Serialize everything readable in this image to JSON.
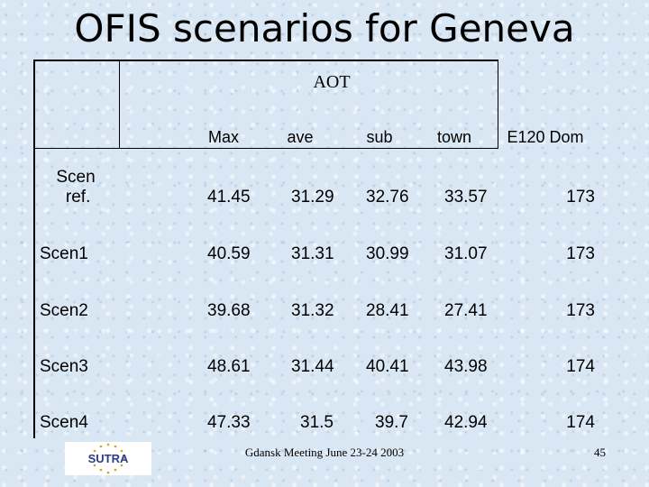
{
  "title": "OFIS scenarios for Geneva",
  "table": {
    "group_header": "AOT",
    "columns": [
      "Max",
      "ave",
      "sub",
      "town",
      "E120 Dom"
    ],
    "rows": [
      {
        "label": "Scen\n ref.",
        "cells": [
          "41.45",
          "31.29",
          "32.76",
          "33.57",
          "173"
        ]
      },
      {
        "label": "Scen1",
        "cells": [
          "40.59",
          "31.31",
          "30.99",
          "31.07",
          "173"
        ]
      },
      {
        "label": "Scen2",
        "cells": [
          "39.68",
          "31.32",
          "28.41",
          "27.41",
          "173"
        ]
      },
      {
        "label": "Scen3",
        "cells": [
          "48.61",
          "31.44",
          "40.41",
          "43.98",
          "174"
        ]
      },
      {
        "label": "Scen4",
        "cells": [
          "47.33",
          "31.5",
          "39.7",
          "42.94",
          "174"
        ]
      }
    ]
  },
  "footer": {
    "meeting": "Gdansk Meeting June 23-24 2003",
    "page_number": "45",
    "logo_text": "SUTRA"
  },
  "colors": {
    "background": "#d9e6f3",
    "logo_blue": "#2a3d8f",
    "logo_red": "#c0262d",
    "logo_stars": "#d4a017"
  }
}
